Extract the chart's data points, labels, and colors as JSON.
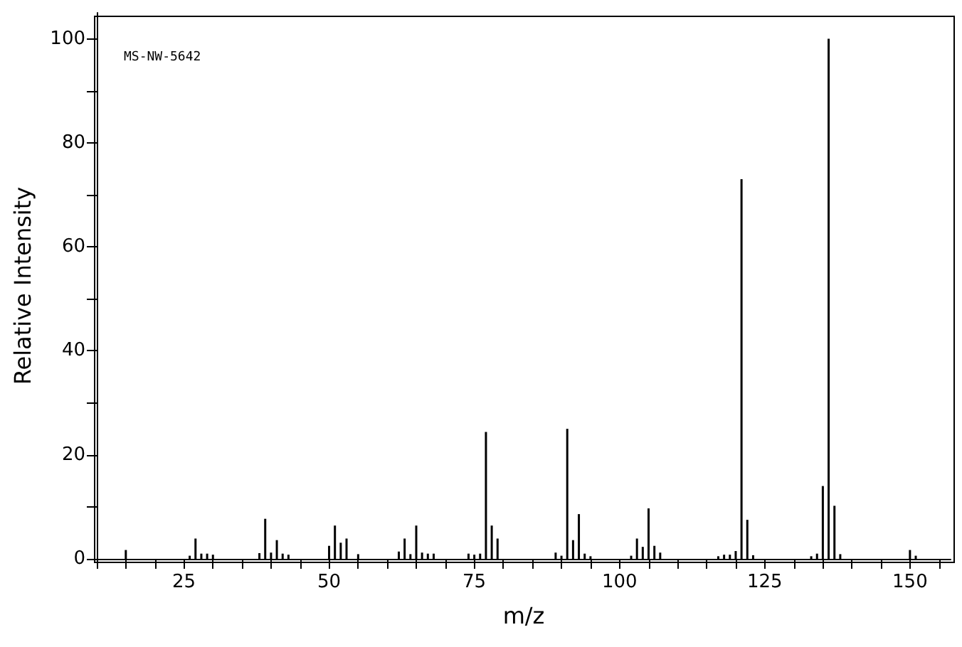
{
  "chart_data": {
    "type": "bar",
    "xlabel": "m/z",
    "ylabel": "Relative Intensity",
    "annotations": [
      "MS-NW-5642"
    ],
    "x": [
      15,
      26,
      27,
      28,
      29,
      30,
      38,
      39,
      40,
      41,
      42,
      43,
      50,
      51,
      52,
      53,
      55,
      62,
      63,
      64,
      65,
      66,
      67,
      68,
      74,
      75,
      76,
      77,
      78,
      79,
      89,
      90,
      91,
      92,
      93,
      94,
      95,
      102,
      103,
      104,
      105,
      106,
      107,
      117,
      118,
      119,
      120,
      121,
      122,
      123,
      133,
      134,
      135,
      136,
      137,
      138,
      150,
      151
    ],
    "values": [
      1.7,
      0.6,
      3.9,
      1.0,
      1.0,
      0.8,
      1.1,
      7.7,
      1.2,
      3.6,
      1.0,
      0.8,
      2.5,
      6.4,
      3.1,
      3.9,
      0.9,
      1.4,
      3.9,
      0.9,
      6.4,
      1.2,
      1.0,
      1.0,
      1.0,
      0.8,
      1.0,
      24.4,
      6.4,
      3.9,
      1.2,
      0.6,
      25,
      3.6,
      8.6,
      1.0,
      0.5,
      0.6,
      3.9,
      2.3,
      9.7,
      2.5,
      1.2,
      0.5,
      0.8,
      0.8,
      1.5,
      73,
      7.5,
      0.7,
      0.5,
      1.0,
      14.0,
      100,
      10.2,
      0.9,
      1.7,
      0.6
    ],
    "color": "#000000",
    "xlim": [
      10,
      157
    ],
    "ylim": [
      0,
      105
    ],
    "xticks": [
      {
        "value": 10,
        "label": null
      },
      {
        "value": 15,
        "label": null
      },
      {
        "value": 20,
        "label": null
      },
      25,
      {
        "value": 30,
        "label": null
      },
      {
        "value": 35,
        "label": null
      },
      {
        "value": 40,
        "label": null
      },
      {
        "value": 45,
        "label": null
      },
      50,
      {
        "value": 55,
        "label": null
      },
      {
        "value": 60,
        "label": null
      },
      {
        "value": 65,
        "label": null
      },
      {
        "value": 70,
        "label": null
      },
      75,
      {
        "value": 80,
        "label": null
      },
      {
        "value": 85,
        "label": null
      },
      {
        "value": 90,
        "label": null
      },
      {
        "value": 95,
        "label": null
      },
      100,
      {
        "value": 105,
        "label": null
      },
      {
        "value": 110,
        "label": null
      },
      {
        "value": 115,
        "label": null
      },
      {
        "value": 120,
        "label": null
      },
      125,
      {
        "value": 130,
        "label": null
      },
      {
        "value": 135,
        "label": null
      },
      {
        "value": 140,
        "label": null
      },
      {
        "value": 145,
        "label": null
      },
      150,
      {
        "value": 155,
        "label": null
      }
    ],
    "yticks": [
      0,
      {
        "value": 10,
        "label": null
      },
      20,
      {
        "value": 30,
        "label": null
      },
      40,
      {
        "value": 50,
        "label": null
      },
      60,
      {
        "value": 70,
        "label": null
      },
      80,
      {
        "value": 90,
        "label": null
      },
      100
    ],
    "grid": false
  }
}
